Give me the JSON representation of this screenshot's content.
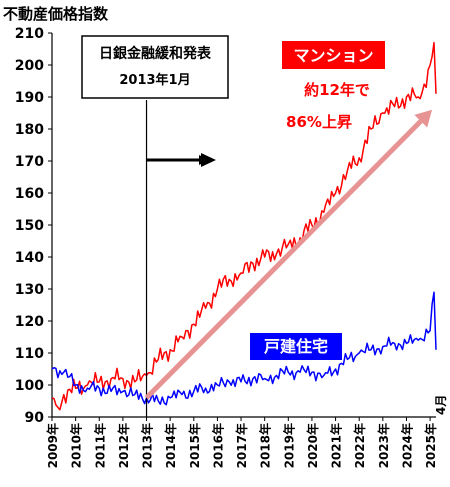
{
  "chart_data": {
    "type": "line",
    "title": "不動産価格指数",
    "ylim": [
      90,
      210
    ],
    "y_ticks": [
      "90",
      "100",
      "110",
      "120",
      "130",
      "140",
      "150",
      "160",
      "170",
      "180",
      "190",
      "200",
      "210"
    ],
    "x_range": [
      "2009-01",
      "2025-04"
    ],
    "x_tick_labels": [
      "2009年",
      "2010年",
      "2011年",
      "2012年",
      "2013年",
      "2014年",
      "2015年",
      "2016年",
      "2017年",
      "2018年",
      "2019年",
      "2020年",
      "2021年",
      "2022年",
      "2023年",
      "2024年",
      "2025年"
    ],
    "end_label": "4月",
    "grid": false,
    "colors": {
      "mansion": "#ff0000",
      "house": "#0000ff",
      "trend_arrow": "#e89393"
    },
    "series": [
      {
        "name": "マンション",
        "color": "#ff0000",
        "anchors": [
          [
            "2009-01",
            96
          ],
          [
            "2009-04",
            93
          ],
          [
            "2009-07",
            97
          ],
          [
            "2010-01",
            99
          ],
          [
            "2010-07",
            100
          ],
          [
            "2011-01",
            101
          ],
          [
            "2011-07",
            102
          ],
          [
            "2012-01",
            102
          ],
          [
            "2012-07",
            101
          ],
          [
            "2013-01",
            103
          ],
          [
            "2013-07",
            108
          ],
          [
            "2014-01",
            111
          ],
          [
            "2014-07",
            115
          ],
          [
            "2015-01",
            119
          ],
          [
            "2015-07",
            124
          ],
          [
            "2016-01",
            130
          ],
          [
            "2016-07",
            133
          ],
          [
            "2017-01",
            135
          ],
          [
            "2017-07",
            138
          ],
          [
            "2018-01",
            140
          ],
          [
            "2018-07",
            141
          ],
          [
            "2019-01",
            144
          ],
          [
            "2019-07",
            146
          ],
          [
            "2020-01",
            150
          ],
          [
            "2020-07",
            154
          ],
          [
            "2021-01",
            160
          ],
          [
            "2021-07",
            167
          ],
          [
            "2022-01",
            171
          ],
          [
            "2022-07",
            180
          ],
          [
            "2023-01",
            185
          ],
          [
            "2023-07",
            187
          ],
          [
            "2024-01",
            190
          ],
          [
            "2024-07",
            190
          ],
          [
            "2024-10",
            194
          ],
          [
            "2025-01",
            200
          ],
          [
            "2025-03",
            207
          ],
          [
            "2025-04",
            191
          ]
        ]
      },
      {
        "name": "戸建住宅",
        "color": "#0000ff",
        "anchors": [
          [
            "2009-01",
            105
          ],
          [
            "2009-07",
            104
          ],
          [
            "2010-01",
            100
          ],
          [
            "2010-07",
            99
          ],
          [
            "2011-01",
            99
          ],
          [
            "2011-07",
            98
          ],
          [
            "2012-01",
            98
          ],
          [
            "2012-07",
            97
          ],
          [
            "2013-01",
            96
          ],
          [
            "2013-07",
            95
          ],
          [
            "2014-01",
            96
          ],
          [
            "2014-07",
            97
          ],
          [
            "2015-01",
            98
          ],
          [
            "2015-07",
            99
          ],
          [
            "2016-01",
            100
          ],
          [
            "2016-07",
            101
          ],
          [
            "2017-01",
            101
          ],
          [
            "2017-07",
            102
          ],
          [
            "2018-01",
            102
          ],
          [
            "2018-07",
            103
          ],
          [
            "2019-01",
            104
          ],
          [
            "2019-07",
            104
          ],
          [
            "2020-01",
            104
          ],
          [
            "2020-07",
            103
          ],
          [
            "2021-01",
            105
          ],
          [
            "2021-07",
            108
          ],
          [
            "2022-01",
            110
          ],
          [
            "2022-07",
            111
          ],
          [
            "2023-01",
            112
          ],
          [
            "2023-07",
            113
          ],
          [
            "2024-01",
            113
          ],
          [
            "2024-07",
            114
          ],
          [
            "2025-01",
            117
          ],
          [
            "2025-03",
            129
          ],
          [
            "2025-04",
            111
          ]
        ]
      }
    ],
    "annotations": {
      "event_box_line1": "日銀金融緩和発表",
      "event_box_line2": "2013年1月",
      "event_date": "2013-01",
      "mansion_label": "マンション",
      "mansion_note_line1": "約12年で",
      "mansion_note_line2": "86%上昇",
      "house_label": "戸建住宅"
    }
  }
}
